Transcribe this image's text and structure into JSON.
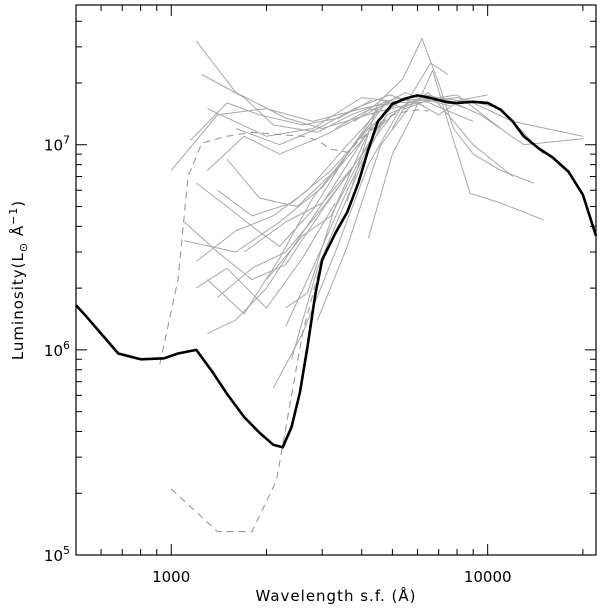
{
  "chart_data": {
    "type": "line",
    "title": "",
    "xlabel": "Wavelength s.f. (Å)",
    "ylabel_prefix": "Luminosity(L",
    "ylabel_sub": "⊙",
    "ylabel_suffix": " Å",
    "ylabel_sup": "−1",
    "ylabel_close": ")",
    "xscale": "log",
    "yscale": "log",
    "xlim": [
      500,
      22000
    ],
    "ylim": [
      100000,
      48000000
    ],
    "x_ticklabels": [
      {
        "value": 1000,
        "label": "1000"
      },
      {
        "value": 10000,
        "label": "10000"
      }
    ],
    "y_ticklabels": [
      {
        "value": 100000,
        "base": "10",
        "exp": "5"
      },
      {
        "value": 1000000,
        "base": "10",
        "exp": "6"
      },
      {
        "value": 10000000,
        "base": "10",
        "exp": "7"
      }
    ],
    "grid": false,
    "legend": "none",
    "colors": {
      "main": "#000000",
      "dashed": "#999999",
      "thin": "#a8a8a8"
    },
    "series": [
      {
        "style": "thick",
        "x": [
          500,
          540,
          600,
          680,
          800,
          950,
          1050,
          1200,
          1350,
          1500,
          1700,
          1900,
          2100,
          2250,
          2400,
          2550,
          2700,
          2850,
          3000,
          3300,
          3600,
          3900,
          4200,
          4500,
          5000,
          5500,
          6000,
          6500,
          7000,
          7500,
          8000,
          9000,
          10000,
          11000,
          12000,
          13000,
          14500,
          16000,
          18000,
          20000,
          22000
        ],
        "y": [
          1650000,
          1450000,
          1200000,
          960000,
          900000,
          910000,
          960000,
          1000000,
          780000,
          610000,
          470000,
          395000,
          345000,
          335000,
          420000,
          620000,
          1050000,
          1850000,
          2750000,
          3700000,
          4700000,
          6500000,
          9500000,
          13000000,
          15800000,
          16800000,
          17400000,
          17000000,
          16500000,
          16100000,
          16000000,
          16200000,
          16000000,
          14800000,
          13000000,
          11000000,
          9600000,
          8700000,
          7400000,
          5700000,
          3600000
        ]
      },
      {
        "style": "dashed",
        "x": [
          920,
          1050,
          1130,
          1250,
          1500,
          1800,
          2200,
          2600,
          2900,
          3200,
          3600,
          4000,
          4500,
          5000,
          5500,
          6000,
          6500
        ],
        "y": [
          850000,
          2200000,
          7000000,
          10200000,
          11000000,
          11500000,
          11200000,
          11000000,
          10500000,
          9500000,
          9200000,
          10800000,
          12500000,
          14000000,
          14500000,
          14800000,
          14600000
        ]
      },
      {
        "style": "dashed",
        "x": [
          1000,
          1400,
          1800,
          2150,
          2600,
          3000
        ],
        "y": [
          210000,
          130000,
          130000,
          230000,
          1200000,
          2800000
        ]
      },
      {
        "style": "thin",
        "x": [
          1000,
          1400,
          2000,
          2800,
          4000,
          5500,
          7000,
          9000,
          12000,
          20000
        ],
        "y": [
          7500000,
          14000000,
          15000000,
          13000000,
          15000000,
          16500000,
          17000000,
          16000000,
          13000000,
          11000000
        ]
      },
      {
        "style": "thin",
        "x": [
          1200,
          1600,
          2300,
          3000,
          4500,
          6000,
          8000,
          11000,
          15000
        ],
        "y": [
          32000000,
          18000000,
          13500000,
          12000000,
          14500000,
          16000000,
          17000000,
          15000000,
          9000000
        ]
      },
      {
        "style": "thin",
        "x": [
          1250,
          1700,
          2100,
          2900,
          3700,
          5200
        ],
        "y": [
          22000000,
          17000000,
          12500000,
          11500000,
          14000000,
          17000000
        ]
      },
      {
        "style": "thin",
        "x": [
          1300,
          2000,
          2800,
          4000,
          5500,
          8000,
          11000
        ],
        "y": [
          15000000,
          11000000,
          12000000,
          17000000,
          16000000,
          17500000,
          12000000
        ]
      },
      {
        "style": "thin",
        "x": [
          1150,
          1500,
          1900,
          2600,
          3400,
          4300
        ],
        "y": [
          10500000,
          16000000,
          14000000,
          12500000,
          13500000,
          16500000
        ]
      },
      {
        "style": "thin",
        "x": [
          1600,
          2200,
          2900,
          3800,
          4900,
          6300
        ],
        "y": [
          12000000,
          10000000,
          12000000,
          15000000,
          17500000,
          15500000
        ]
      },
      {
        "style": "thin",
        "x": [
          1300,
          1700,
          2200,
          3000,
          4100,
          5500,
          7200,
          9000
        ],
        "y": [
          7500000,
          11000000,
          9000000,
          11000000,
          14000000,
          18000000,
          15000000,
          13000000
        ]
      },
      {
        "style": "thin",
        "x": [
          1200,
          1500,
          1800,
          2200,
          2800,
          3600,
          4500
        ],
        "y": [
          6500000,
          5000000,
          4000000,
          3200000,
          4800000,
          9000000,
          15000000
        ]
      },
      {
        "style": "thin",
        "x": [
          1400,
          1800,
          2400,
          3200,
          4200,
          5200
        ],
        "y": [
          6000000,
          4500000,
          5200000,
          7500000,
          12000000,
          16000000
        ]
      },
      {
        "style": "thin",
        "x": [
          1200,
          1600,
          2100,
          2700,
          3500,
          4500
        ],
        "y": [
          2700000,
          3800000,
          4500000,
          6000000,
          9500000,
          14500000
        ]
      },
      {
        "style": "thin",
        "x": [
          1500,
          1900,
          2500,
          3300,
          4300
        ],
        "y": [
          8500000,
          5500000,
          5000000,
          7500000,
          13000000
        ]
      },
      {
        "style": "thin",
        "x": [
          1100,
          1600,
          2200,
          3000,
          3900,
          5000
        ],
        "y": [
          3400000,
          3000000,
          4200000,
          6200000,
          10000000,
          16000000
        ]
      },
      {
        "style": "thin",
        "x": [
          1300,
          1700,
          2200,
          2800,
          3600,
          4700
        ],
        "y": [
          2200000,
          1500000,
          2800000,
          5500000,
          9000000,
          15500000
        ]
      },
      {
        "style": "thin",
        "x": [
          1100,
          1400,
          1800,
          2300,
          3000,
          3900,
          5000
        ],
        "y": [
          4200000,
          3000000,
          2200000,
          2600000,
          4800000,
          8500000,
          14000000
        ]
      },
      {
        "style": "thin",
        "x": [
          1400,
          1800,
          2300,
          2900,
          3700
        ],
        "y": [
          1800000,
          2500000,
          3000000,
          4600000,
          7500000
        ]
      },
      {
        "style": "thin",
        "x": [
          1300,
          1600,
          2000,
          2500,
          3200,
          4100
        ],
        "y": [
          1200000,
          1400000,
          2000000,
          3400000,
          6000000,
          11000000
        ]
      },
      {
        "style": "thin",
        "x": [
          1200,
          1500,
          2000,
          2600,
          3300
        ],
        "y": [
          2000000,
          2500000,
          1600000,
          2800000,
          5200000
        ]
      },
      {
        "style": "thin",
        "x": [
          2100,
          2600,
          3300,
          4200,
          5300
        ],
        "y": [
          650000,
          1200000,
          3000000,
          8000000,
          15000000
        ]
      },
      {
        "style": "thin",
        "x": [
          2300,
          2800,
          3600,
          4600
        ],
        "y": [
          1300000,
          2500000,
          6000000,
          13000000
        ]
      },
      {
        "style": "thin",
        "x": [
          2300,
          2700,
          3300,
          4300
        ],
        "y": [
          1600000,
          1900000,
          5000000,
          12500000
        ]
      },
      {
        "style": "thin",
        "x": [
          2900,
          3600,
          4600,
          5800
        ],
        "y": [
          1400000,
          3200000,
          10000000,
          16000000
        ]
      },
      {
        "style": "thin",
        "x": [
          2000,
          2600,
          3200,
          4100
        ],
        "y": [
          2200000,
          3600000,
          4500000,
          9500000
        ]
      },
      {
        "style": "thin",
        "x": [
          2400,
          2900,
          3400,
          4000,
          4800
        ],
        "y": [
          900000,
          2500000,
          4500000,
          8000000,
          14000000
        ]
      },
      {
        "style": "thin",
        "x": [
          1700,
          2300,
          3000,
          3800
        ],
        "y": [
          3000000,
          4200000,
          5200000,
          8000000
        ]
      },
      {
        "style": "thin",
        "x": [
          3600,
          4500,
          5400,
          6200,
          7000,
          7800,
          9000,
          11000,
          14000
        ],
        "y": [
          5300000,
          16000000,
          21000000,
          33000000,
          20000000,
          12000000,
          9000000,
          7500000,
          6500000
        ]
      },
      {
        "style": "thin",
        "x": [
          4200,
          5000,
          5800,
          6700,
          7600,
          8800,
          11000,
          15000
        ],
        "y": [
          3500000,
          9000000,
          14000000,
          23000000,
          12000000,
          5800000,
          5200000,
          4300000
        ]
      },
      {
        "style": "thin",
        "x": [
          4000,
          4800,
          5600,
          6500,
          7500,
          9000,
          12000
        ],
        "y": [
          9000000,
          14000000,
          15500000,
          18000000,
          14000000,
          10000000,
          7000000
        ]
      },
      {
        "style": "thin",
        "x": [
          4500,
          5400,
          6400,
          7500,
          9500,
          13000,
          20000
        ],
        "y": [
          12000000,
          15500000,
          17500000,
          16500000,
          14000000,
          10000000,
          10700000
        ]
      },
      {
        "style": "thin",
        "x": [
          3300,
          4100,
          5000,
          6000,
          7200,
          8600
        ],
        "y": [
          12000000,
          14500000,
          16000000,
          17500000,
          16500000,
          15000000
        ]
      },
      {
        "style": "thin",
        "x": [
          5000,
          5800,
          6600,
          7500
        ],
        "y": [
          12000000,
          18000000,
          25000000,
          22000000
        ]
      },
      {
        "style": "thin",
        "x": [
          3800,
          4600,
          5500,
          6500,
          7600
        ],
        "y": [
          13000000,
          16500000,
          15000000,
          16500000,
          15500000
        ]
      },
      {
        "style": "thin",
        "x": [
          4300,
          5100,
          6000,
          7000,
          8200,
          10000
        ],
        "y": [
          14000000,
          17000000,
          16000000,
          14000000,
          16500000,
          17500000
        ]
      }
    ]
  }
}
